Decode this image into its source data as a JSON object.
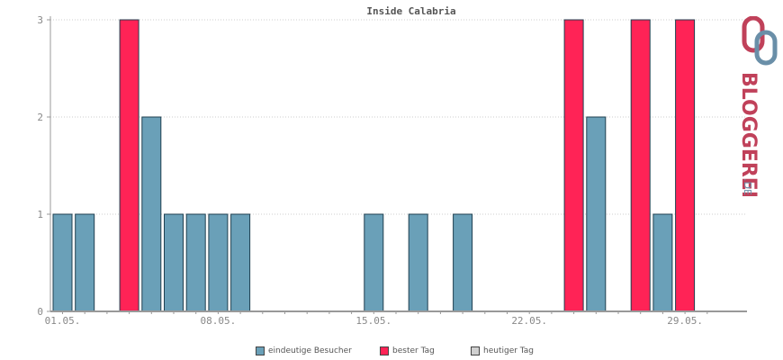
{
  "chart_data": {
    "type": "bar",
    "title": "Inside Calabria",
    "xlabel": "",
    "ylabel": "",
    "ylim": [
      0,
      3
    ],
    "yticks": [
      "0",
      "1",
      "2",
      "3"
    ],
    "grid": true,
    "legend_position": "bottom",
    "categories": [
      "01.05.",
      "02.05.",
      "03.05.",
      "04.05.",
      "05.05.",
      "06.05.",
      "07.05.",
      "08.05.",
      "09.05.",
      "10.05.",
      "11.05.",
      "12.05.",
      "13.05.",
      "14.05.",
      "15.05.",
      "16.05.",
      "17.05.",
      "18.05.",
      "19.05.",
      "20.05.",
      "21.05.",
      "22.05.",
      "23.05.",
      "24.05.",
      "25.05.",
      "26.05.",
      "27.05.",
      "28.05.",
      "29.05.",
      "30.05."
    ],
    "xtick_labels": [
      "01.05.",
      "08.05.",
      "15.05.",
      "22.05.",
      "29.05."
    ],
    "series": [
      {
        "name": "eindeutige Besucher",
        "color": "#6aa0b8",
        "values": [
          1,
          1,
          0,
          0,
          2,
          1,
          1,
          1,
          1,
          0,
          0,
          0,
          0,
          0,
          1,
          0,
          1,
          0,
          1,
          0,
          0,
          0,
          0,
          0,
          2,
          0,
          0,
          1,
          0,
          0
        ]
      },
      {
        "name": "bester Tag",
        "color": "#ff2356",
        "values": [
          0,
          0,
          0,
          3,
          0,
          0,
          0,
          0,
          0,
          0,
          0,
          0,
          0,
          0,
          0,
          0,
          0,
          0,
          0,
          0,
          0,
          0,
          0,
          3,
          0,
          0,
          3,
          0,
          3,
          0
        ]
      },
      {
        "name": "heutiger Tag",
        "color": "#d0d0d0",
        "values": [
          0,
          0,
          0,
          0,
          0,
          0,
          0,
          0,
          0,
          0,
          0,
          0,
          0,
          0,
          0,
          0,
          0,
          0,
          0,
          0,
          0,
          0,
          0,
          0,
          0,
          0,
          0,
          0,
          0,
          0
        ]
      }
    ]
  },
  "colors": {
    "axis": "#999999",
    "grid": "#cccccc",
    "bar_border": "#1f3f4f",
    "label": "#888888"
  },
  "logo": {
    "text": "BLOGGEREI",
    "suffix": ".DE",
    "brand_color": "#c0415a",
    "accent_color": "#6a8fa8"
  }
}
